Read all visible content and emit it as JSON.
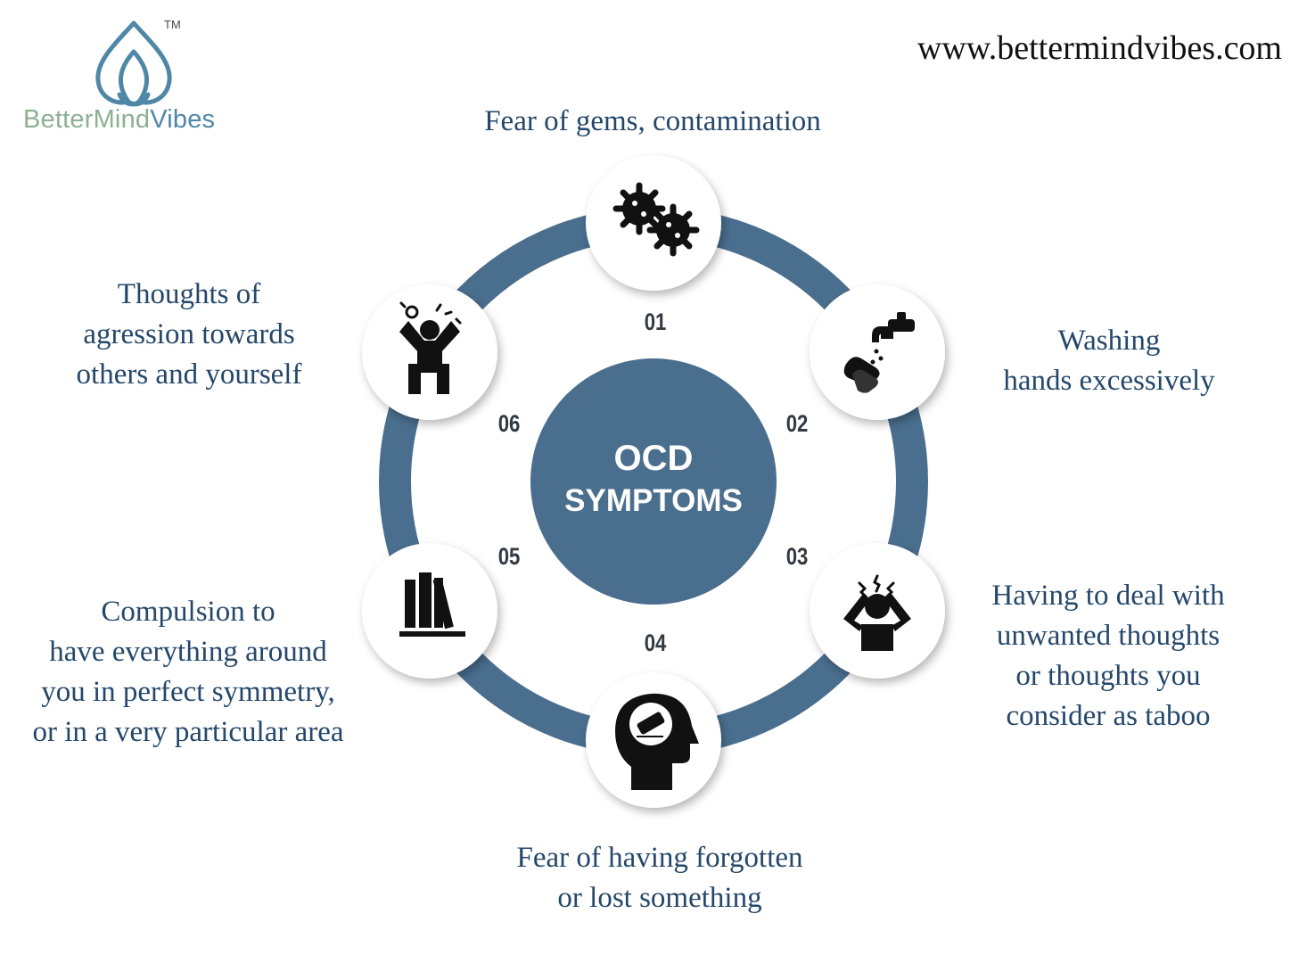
{
  "brand": {
    "name_part1": "BetterMind",
    "name_part2": "Vibes",
    "trademark": "TM",
    "logo_icon": "lotus-drop-icon"
  },
  "website": "www.bettermindvibes.com",
  "center": {
    "line1": "OCD",
    "line2": "SYMPTOMS"
  },
  "colors": {
    "ring": "#4a6e8e",
    "center": "#4a6e8e",
    "label_text": "#24476a",
    "brand_green": "#8db092",
    "brand_blue": "#4f87a6"
  },
  "symptoms": [
    {
      "number": "01",
      "icon": "germs-icon",
      "lines": [
        "Fear of gems, contamination"
      ]
    },
    {
      "number": "02",
      "icon": "hand-washing-faucet-icon",
      "lines": [
        "Washing",
        "hands excessively"
      ]
    },
    {
      "number": "03",
      "icon": "stressed-person-icon",
      "lines": [
        "Having to deal with",
        "unwanted thoughts",
        "or thoughts you",
        "consider as taboo"
      ]
    },
    {
      "number": "04",
      "icon": "head-eraser-icon",
      "lines": [
        "Fear of having forgotten",
        "or lost something"
      ]
    },
    {
      "number": "05",
      "icon": "books-on-shelf-icon",
      "lines": [
        "Compulsion to",
        "have everything around",
        "you in perfect symmetry,",
        "or in a very particular area"
      ]
    },
    {
      "number": "06",
      "icon": "angry-person-icon",
      "lines": [
        "Thoughts of",
        "agression towards",
        "others and yourself"
      ]
    }
  ]
}
